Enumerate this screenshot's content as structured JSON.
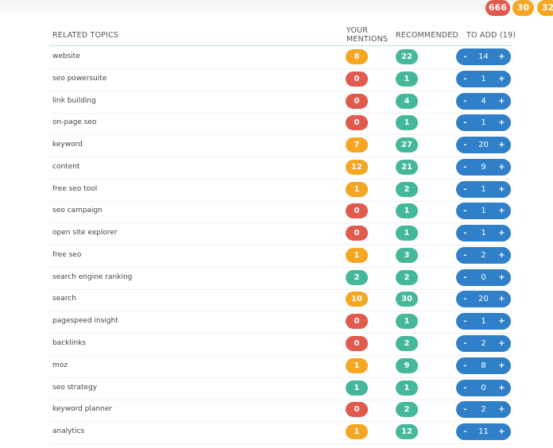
{
  "colors": {
    "red": "#e05a4e",
    "orange": "#f5a623",
    "teal": "#45b89a",
    "blue": "#2f80c8"
  },
  "top_badges": [
    {
      "value": "666",
      "color": "red"
    },
    {
      "value": "30",
      "color": "orange"
    },
    {
      "value": "32",
      "color": "orange"
    }
  ],
  "headers": {
    "topics": "RELATED TOPICS",
    "mentions_line1": "YOUR",
    "mentions_line2": "MENTIONS",
    "recommended": "RECOMMENDED",
    "to_add": "TO ADD (19)"
  },
  "controls": {
    "minus": "-",
    "plus": "+"
  },
  "rows": [
    {
      "topic": "website",
      "mentions": "8",
      "mentions_color": "orange",
      "recommended": "22",
      "to_add": "14"
    },
    {
      "topic": "seo powersuite",
      "mentions": "0",
      "mentions_color": "red",
      "recommended": "1",
      "to_add": "1"
    },
    {
      "topic": "link building",
      "mentions": "0",
      "mentions_color": "red",
      "recommended": "4",
      "to_add": "4"
    },
    {
      "topic": "on-page seo",
      "mentions": "0",
      "mentions_color": "red",
      "recommended": "1",
      "to_add": "1"
    },
    {
      "topic": "keyword",
      "mentions": "7",
      "mentions_color": "orange",
      "recommended": "27",
      "to_add": "20"
    },
    {
      "topic": "content",
      "mentions": "12",
      "mentions_color": "orange",
      "recommended": "21",
      "to_add": "9"
    },
    {
      "topic": "free seo tool",
      "mentions": "1",
      "mentions_color": "orange",
      "recommended": "2",
      "to_add": "1"
    },
    {
      "topic": "seo campaign",
      "mentions": "0",
      "mentions_color": "red",
      "recommended": "1",
      "to_add": "1"
    },
    {
      "topic": "open site explorer",
      "mentions": "0",
      "mentions_color": "red",
      "recommended": "1",
      "to_add": "1"
    },
    {
      "topic": "free seo",
      "mentions": "1",
      "mentions_color": "orange",
      "recommended": "3",
      "to_add": "2"
    },
    {
      "topic": "search engine ranking",
      "mentions": "2",
      "mentions_color": "teal",
      "recommended": "2",
      "to_add": "0"
    },
    {
      "topic": "search",
      "mentions": "10",
      "mentions_color": "orange",
      "recommended": "30",
      "to_add": "20"
    },
    {
      "topic": "pagespeed insight",
      "mentions": "0",
      "mentions_color": "red",
      "recommended": "1",
      "to_add": "1"
    },
    {
      "topic": "backlinks",
      "mentions": "0",
      "mentions_color": "red",
      "recommended": "2",
      "to_add": "2"
    },
    {
      "topic": "moz",
      "mentions": "1",
      "mentions_color": "orange",
      "recommended": "9",
      "to_add": "8"
    },
    {
      "topic": "seo strategy",
      "mentions": "1",
      "mentions_color": "teal",
      "recommended": "1",
      "to_add": "0"
    },
    {
      "topic": "keyword planner",
      "mentions": "0",
      "mentions_color": "red",
      "recommended": "2",
      "to_add": "2"
    },
    {
      "topic": "analytics",
      "mentions": "1",
      "mentions_color": "orange",
      "recommended": "12",
      "to_add": "11"
    }
  ]
}
